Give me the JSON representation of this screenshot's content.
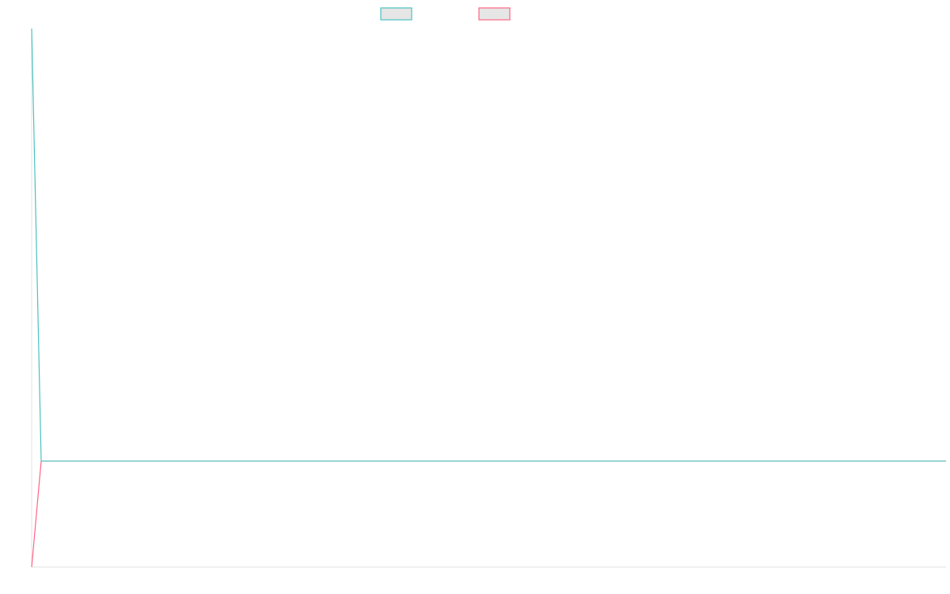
{
  "chart_data": {
    "type": "line",
    "title": "",
    "xlabel": "",
    "ylabel": "",
    "ylim": [
      0,
      100
    ],
    "grid": false,
    "legend": "top",
    "series": [
      {
        "color": "#4bc0c0",
        "values": [
          100,
          19.7,
          19.7,
          19.7,
          19.7,
          19.7,
          19.7,
          19.7,
          19.7,
          19.7,
          19.7,
          19.7,
          19.7,
          19.7,
          19.7,
          19.7,
          19.7,
          19.7,
          19.7,
          19.7,
          19.7,
          19.7,
          19.7,
          19.7,
          19.7,
          19.7,
          19.7,
          19.7,
          19.7,
          19.7,
          19.7,
          19.7,
          19.7,
          19.7,
          19.7,
          19.7,
          19.7,
          19.7,
          19.7,
          19.7,
          19.7,
          19.7,
          19.7,
          19.7,
          19.7,
          19.7,
          19.7,
          19.7,
          19.7,
          19.7,
          19.7,
          19.7,
          19.7,
          19.7,
          19.7,
          19.7,
          19.7,
          19.7,
          19.7,
          19.7,
          19.7,
          19.7,
          19.7,
          19.7,
          19.7,
          19.7,
          19.7,
          19.7,
          19.7,
          19.7,
          19.7,
          19.7,
          19.7,
          19.7,
          19.7,
          19.7,
          19.7,
          19.7,
          19.7,
          19.7,
          19.7,
          19.7,
          19.7,
          19.7,
          19.7,
          19.7,
          19.7,
          19.7,
          19.7,
          19.7,
          19.7,
          19.7,
          19.7,
          19.7,
          19.7,
          19.7,
          19.7
        ]
      },
      {
        "color": "#ff6384",
        "values": [
          0,
          19.7,
          19.7,
          19.7,
          19.7,
          19.7,
          19.7,
          19.7,
          19.7,
          19.7,
          19.7,
          19.7,
          19.7,
          19.7,
          19.7,
          19.7,
          19.7,
          19.7,
          19.7,
          19.7,
          19.7,
          19.7,
          19.7,
          19.7,
          19.7,
          19.7,
          19.7,
          19.7,
          19.7,
          19.7,
          19.7,
          19.7,
          19.7,
          19.7,
          19.7,
          19.7,
          19.7,
          19.7,
          19.7,
          19.7,
          19.7,
          19.7,
          19.7,
          19.7,
          19.7,
          19.7,
          19.7,
          19.7,
          19.7,
          19.7,
          19.7,
          19.7,
          19.7,
          19.7,
          19.7,
          19.7,
          19.7,
          19.7,
          19.7,
          19.7,
          19.7,
          19.7,
          19.7,
          19.7,
          19.7,
          19.7,
          19.7,
          19.7,
          19.7,
          19.7,
          19.7,
          19.7,
          19.7,
          19.7,
          19.7,
          19.7,
          19.7,
          19.7,
          19.7,
          19.7,
          19.7,
          19.7,
          19.7,
          19.7,
          19.7,
          19.7,
          19.7,
          19.7,
          19.7,
          19.7,
          19.7,
          19.7,
          19.7,
          19.7,
          19.7,
          19.7,
          19.7
        ]
      }
    ],
    "axis_color": "#e0e0e0",
    "legend_fill": "#e6e6e6"
  }
}
